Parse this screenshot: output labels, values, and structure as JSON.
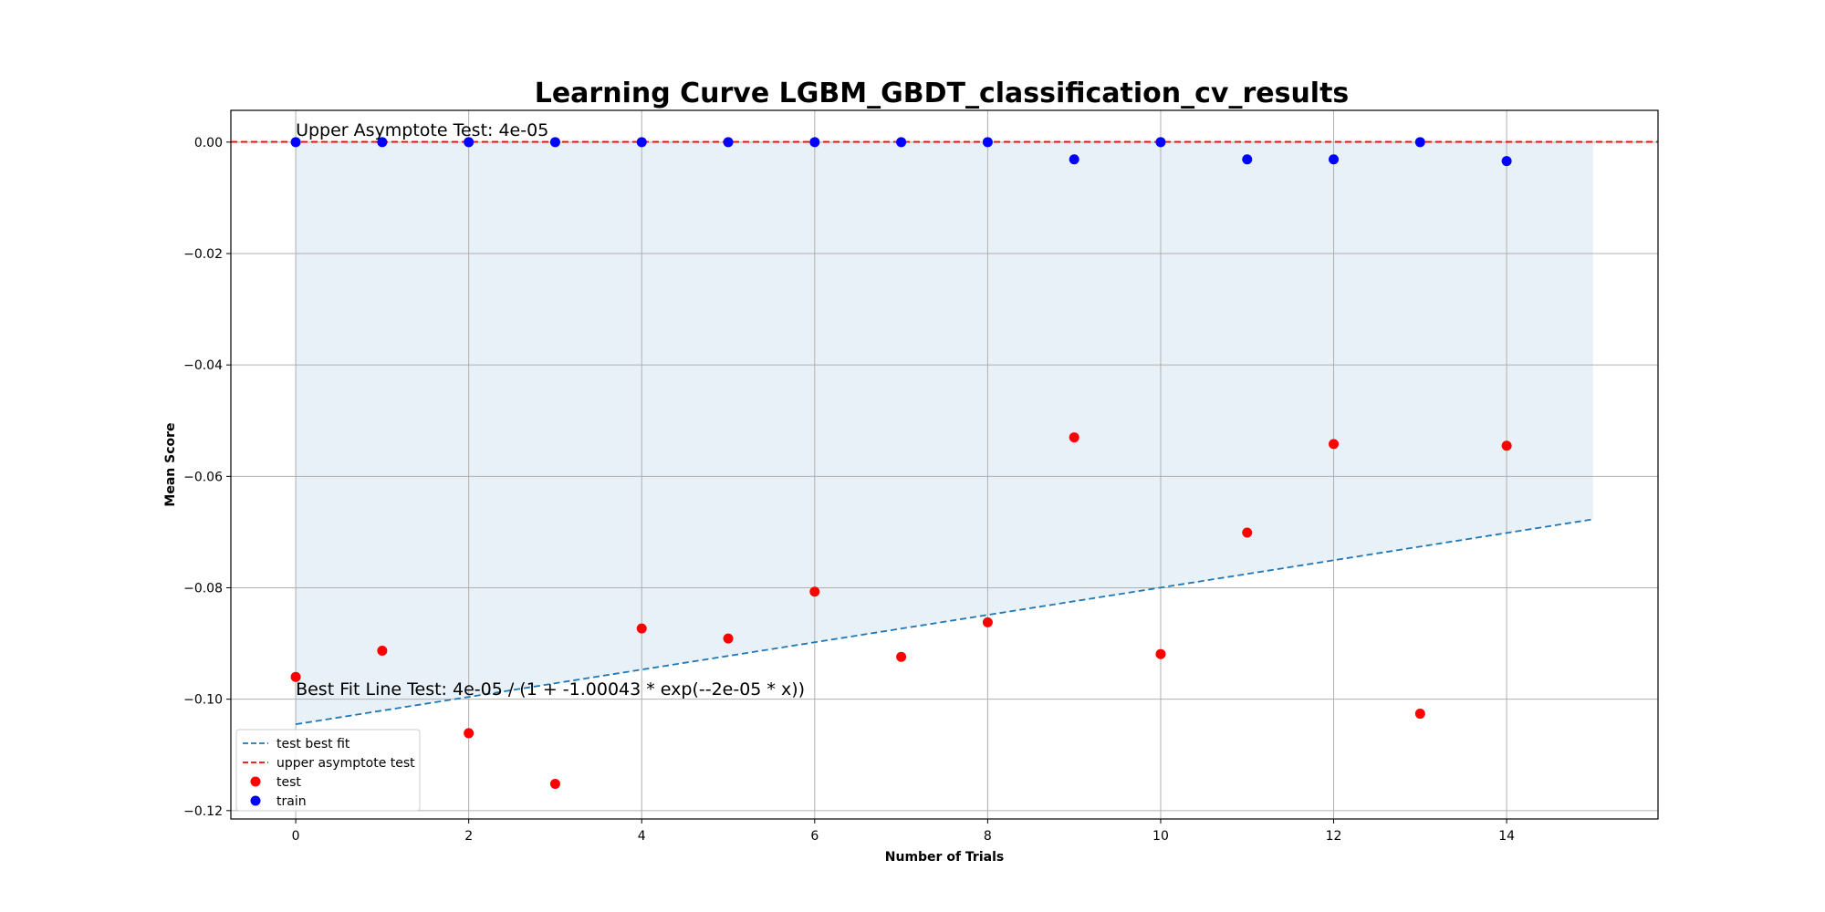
{
  "chart_data": {
    "type": "scatter",
    "title": "Learning Curve LGBM_GBDT_classification_cv_results",
    "xlabel": "Number of Trials",
    "ylabel": "Mean Score",
    "xlim": [
      -0.75,
      15.75
    ],
    "ylim": [
      -0.1215,
      0.0057
    ],
    "xticks": [
      0,
      2,
      4,
      6,
      8,
      10,
      12,
      14
    ],
    "xtick_labels": [
      "0",
      "2",
      "4",
      "6",
      "8",
      "10",
      "12",
      "14"
    ],
    "yticks": [
      0.0,
      -0.02,
      -0.04,
      -0.06,
      -0.08,
      -0.1,
      -0.12
    ],
    "ytick_labels": [
      "0.00",
      "−0.02",
      "−0.04",
      "−0.06",
      "−0.08",
      "−0.10",
      "−0.12"
    ],
    "grid": true,
    "legend_position": "lower-left",
    "annotations": [
      {
        "id": "upper",
        "text": "Upper Asymptote Test: 4e-05",
        "x": 0,
        "y": 0.0011
      },
      {
        "id": "bestfit",
        "text": "Best Fit Line Test: 4e-05 / (1 + -1.00043 * exp(--2e-05 * x))",
        "x": 0,
        "y": -0.0992
      }
    ],
    "series": [
      {
        "name": "test best fit",
        "kind": "line",
        "style": "dashed",
        "color": "#1f77b4",
        "x": [
          0,
          15
        ],
        "y": [
          -0.1045,
          -0.0677
        ]
      },
      {
        "name": "upper asymptote test",
        "kind": "hline",
        "style": "dashed",
        "color": "#ff0000",
        "y": 4e-05
      },
      {
        "name": "test",
        "kind": "scatter",
        "color": "#ff0000",
        "x": [
          0,
          1,
          2,
          3,
          4,
          5,
          6,
          7,
          8,
          9,
          10,
          11,
          12,
          13,
          14
        ],
        "y": [
          -0.096,
          -0.0913,
          -0.1061,
          -0.1152,
          -0.0873,
          -0.0891,
          -0.0807,
          -0.0924,
          -0.0862,
          -0.053,
          -0.0919,
          -0.0701,
          -0.0542,
          -0.1026,
          -0.0545
        ]
      },
      {
        "name": "train",
        "kind": "scatter",
        "color": "#0000ff",
        "x": [
          0,
          1,
          2,
          3,
          4,
          5,
          6,
          7,
          8,
          9,
          10,
          11,
          12,
          13,
          14
        ],
        "y": [
          0.0,
          0.0,
          0.0,
          0.0,
          0.0,
          0.0,
          0.0,
          0.0,
          0.0,
          -0.0031,
          0.0,
          -0.0031,
          -0.0031,
          0.0,
          -0.0034
        ]
      }
    ],
    "fill": {
      "color": "#1f77b4",
      "opacity": 0.1,
      "x": [
        0,
        15
      ],
      "upper": [
        0.0,
        0.0
      ],
      "lower": [
        -0.1045,
        -0.0677
      ]
    }
  }
}
